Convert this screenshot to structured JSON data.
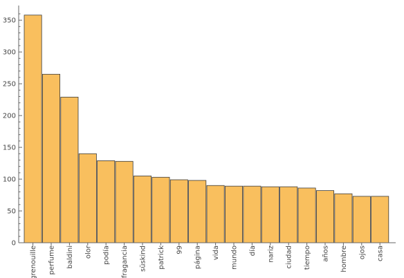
{
  "chart_data": {
    "type": "bar",
    "categories": [
      "grenouille",
      "perfume",
      "baldini",
      "olor",
      "podía",
      "fragancia",
      "süskind",
      "patrick",
      "99",
      "página",
      "vida",
      "mundo",
      "día",
      "nariz",
      "ciudad",
      "tiempo",
      "años",
      "hombre",
      "ojos",
      "casa"
    ],
    "values": [
      358,
      265,
      229,
      140,
      129,
      128,
      105,
      103,
      99,
      98,
      90,
      89,
      89,
      88,
      88,
      86,
      82,
      77,
      73,
      73
    ],
    "ylim": [
      0,
      365
    ],
    "yticks": [
      0,
      50,
      100,
      150,
      200,
      250,
      300,
      350
    ],
    "title": "",
    "xlabel": "",
    "ylabel": "",
    "bar_color": "#f9bf5e",
    "bar_edge_color": "#3a3a3a",
    "grid": false
  }
}
